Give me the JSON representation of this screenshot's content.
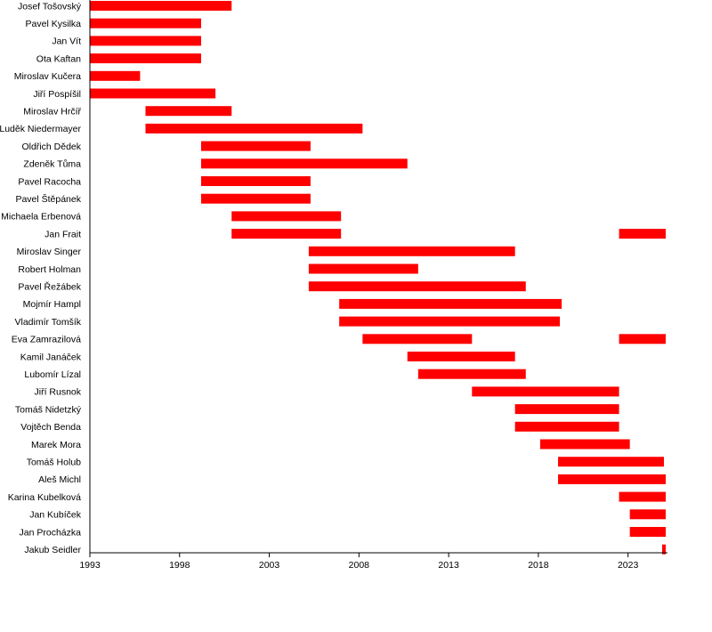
{
  "chart_data": {
    "type": "bar",
    "orientation": "horizontal",
    "style": "timeline",
    "xlim": [
      1993,
      2025.2
    ],
    "ticks": [
      1993,
      1998,
      2003,
      2008,
      2013,
      2018,
      2023
    ],
    "tick_labels": [
      "1993",
      "1998",
      "2003",
      "2008",
      "2013",
      "2018",
      "2023"
    ],
    "bar_color": "#ff0000",
    "grid": false,
    "rows": [
      {
        "name": "Josef Tošovský",
        "intervals": [
          [
            1993.0,
            2000.9
          ]
        ]
      },
      {
        "name": "Pavel Kysilka",
        "intervals": [
          [
            1993.0,
            1999.2
          ]
        ]
      },
      {
        "name": "Jan Vít",
        "intervals": [
          [
            1993.0,
            1999.2
          ]
        ]
      },
      {
        "name": "Ota Kaftan",
        "intervals": [
          [
            1993.0,
            1999.2
          ]
        ]
      },
      {
        "name": "Miroslav Kučera",
        "intervals": [
          [
            1993.0,
            1995.8
          ]
        ]
      },
      {
        "name": "Jiří Pospíšil",
        "intervals": [
          [
            1993.0,
            2000.0
          ]
        ]
      },
      {
        "name": "Miroslav Hrčíř",
        "intervals": [
          [
            1996.1,
            2000.9
          ]
        ]
      },
      {
        "name": "Luděk Niedermayer",
        "intervals": [
          [
            1996.1,
            2008.2
          ]
        ]
      },
      {
        "name": "Oldřich Dědek",
        "intervals": [
          [
            1999.2,
            2005.3
          ]
        ]
      },
      {
        "name": "Zdeněk Tůma",
        "intervals": [
          [
            1999.2,
            2010.7
          ]
        ]
      },
      {
        "name": "Pavel Racocha",
        "intervals": [
          [
            1999.2,
            2005.3
          ]
        ]
      },
      {
        "name": "Pavel Štěpánek",
        "intervals": [
          [
            1999.2,
            2005.3
          ]
        ]
      },
      {
        "name": "Michaela Erbenová",
        "intervals": [
          [
            2000.9,
            2007.0
          ]
        ]
      },
      {
        "name": "Jan Frait",
        "intervals": [
          [
            2000.9,
            2007.0
          ],
          [
            2022.5,
            2025.1
          ]
        ]
      },
      {
        "name": "Miroslav Singer",
        "intervals": [
          [
            2005.2,
            2016.7
          ]
        ]
      },
      {
        "name": "Robert Holman",
        "intervals": [
          [
            2005.2,
            2011.3
          ]
        ]
      },
      {
        "name": "Pavel Řežábek",
        "intervals": [
          [
            2005.2,
            2017.3
          ]
        ]
      },
      {
        "name": "Mojmír Hampl",
        "intervals": [
          [
            2006.9,
            2019.3
          ]
        ]
      },
      {
        "name": "Vladimír Tomšík",
        "intervals": [
          [
            2006.9,
            2019.2
          ]
        ]
      },
      {
        "name": "Eva Zamrazilová",
        "intervals": [
          [
            2008.2,
            2014.3
          ],
          [
            2022.5,
            2025.1
          ]
        ]
      },
      {
        "name": "Kamil Janáček",
        "intervals": [
          [
            2010.7,
            2016.7
          ]
        ]
      },
      {
        "name": "Lubomír Lízal",
        "intervals": [
          [
            2011.3,
            2017.3
          ]
        ]
      },
      {
        "name": "Jiří Rusnok",
        "intervals": [
          [
            2014.3,
            2022.5
          ]
        ]
      },
      {
        "name": "Tomáš Nidetzký",
        "intervals": [
          [
            2016.7,
            2022.5
          ]
        ]
      },
      {
        "name": "Vojtěch Benda",
        "intervals": [
          [
            2016.7,
            2022.5
          ]
        ]
      },
      {
        "name": "Marek Mora",
        "intervals": [
          [
            2018.1,
            2023.1
          ]
        ]
      },
      {
        "name": "Tomáš Holub",
        "intervals": [
          [
            2019.1,
            2025.0
          ]
        ]
      },
      {
        "name": "Aleš Michl",
        "intervals": [
          [
            2019.1,
            2025.1
          ]
        ]
      },
      {
        "name": "Karina Kubelková",
        "intervals": [
          [
            2022.5,
            2025.1
          ]
        ]
      },
      {
        "name": "Jan Kubíček",
        "intervals": [
          [
            2023.1,
            2025.1
          ]
        ]
      },
      {
        "name": "Jan Procházka",
        "intervals": [
          [
            2023.1,
            2025.1
          ]
        ]
      },
      {
        "name": "Jakub Seidler",
        "intervals": [
          [
            2024.9,
            2025.1
          ]
        ]
      }
    ]
  }
}
